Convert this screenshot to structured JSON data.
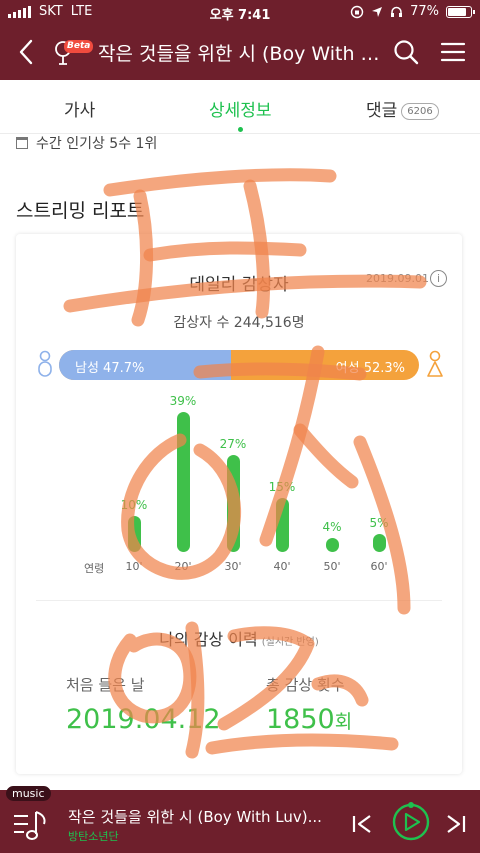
{
  "status_bar": {
    "carrier": "SKT",
    "network": "LTE",
    "time": "오후 7:41",
    "battery": "77%"
  },
  "header": {
    "title": "작은 것들을 위한 시 (Boy With Luv)",
    "beta_label": "Beta"
  },
  "tabs": [
    {
      "label": "가사"
    },
    {
      "label": "상세정보",
      "active": true
    },
    {
      "label": "댓글",
      "badge": "6206"
    }
  ],
  "weekly_rank": "수간 인기상 5수 1위",
  "section_title": "스트리밍 리포트",
  "daily": {
    "title": "데일리 감상자",
    "date": "2019.09.01",
    "info_glyph": "i",
    "listeners": "감상자 수 244,516명",
    "male_label": "남성 47.7%",
    "female_label": "여성 52.3%",
    "male_fraction": 0.477
  },
  "chart_data": {
    "type": "bar",
    "xlabel": "연령",
    "categories": [
      "10'",
      "20'",
      "30'",
      "40'",
      "50'",
      "60'"
    ],
    "values": [
      10,
      39,
      27,
      15,
      4,
      5
    ],
    "value_labels": [
      "10%",
      "39%",
      "27%",
      "15%",
      "4%",
      "5%"
    ],
    "color": "#3fc04a"
  },
  "history": {
    "title": "나의 감상 이력",
    "subtitle": "(실시간 반영)",
    "first_label": "처음 들은 날",
    "first_value": "2019.04.12",
    "total_label": "총 감상 횟수",
    "total_value": "1850",
    "total_unit": "회"
  },
  "player": {
    "chip": "music",
    "song": "작은 것들을 위한 시 (Boy With Luv)...",
    "artist": "방탄소년단"
  },
  "colors": {
    "brand": "#6e1f2c",
    "accent": "#1ec14f",
    "male": "#8fb2ea",
    "female": "#f4a23c",
    "scrawl": "#f0844c"
  },
  "icons": [
    "back-arrow-icon",
    "microphone-icon",
    "search-icon",
    "hamburger-menu-icon",
    "calendar-icon",
    "info-icon",
    "male-icon",
    "female-icon",
    "playlist-icon",
    "previous-icon",
    "play-icon",
    "next-icon"
  ]
}
